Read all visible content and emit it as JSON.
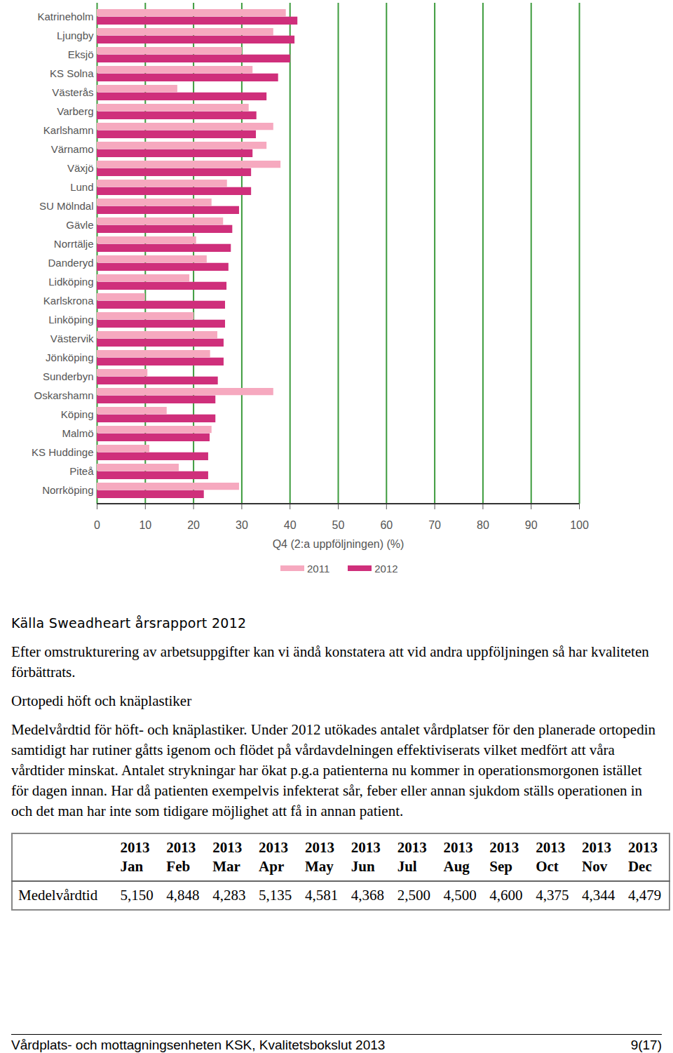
{
  "chart_data": {
    "type": "bar",
    "orientation": "horizontal",
    "grid": true,
    "categories": [
      "Katrineholm",
      "Ljungby",
      "Eksjö",
      "KS Solna",
      "Västerås",
      "Varberg",
      "Karlshamn",
      "Värnamo",
      "Växjö",
      "Lund",
      "SU Mölndal",
      "Gävle",
      "Norrtälje",
      "Danderyd",
      "Lidköping",
      "Karlskrona",
      "Linköping",
      "Västervik",
      "Jönköping",
      "Sunderbyn",
      "Oskarshamn",
      "Köping",
      "Malmö",
      "KS Huddinge",
      "Piteå",
      "Norrköping"
    ],
    "series": [
      {
        "name": "2011",
        "color": "#f6a9bf",
        "values": [
          39.2,
          36.6,
          30.1,
          32.3,
          16.7,
          31.5,
          36.6,
          35.2,
          38.1,
          27.0,
          23.8,
          26.2,
          20.6,
          22.8,
          19.2,
          10.0,
          20.1,
          25.0,
          23.5,
          10.5,
          36.6,
          14.5,
          23.8,
          10.9,
          17.0,
          29.5
        ]
      },
      {
        "name": "2012",
        "color": "#cf2f7b",
        "values": [
          41.6,
          41.0,
          40.1,
          37.6,
          35.2,
          33.1,
          33.0,
          32.3,
          32.0,
          32.0,
          29.5,
          28.1,
          27.8,
          27.3,
          26.9,
          26.6,
          26.6,
          26.3,
          26.3,
          25.1,
          24.6,
          24.6,
          23.4,
          23.1,
          23.1,
          22.2
        ]
      }
    ],
    "xlim": [
      0,
      100
    ],
    "xticks": [
      0,
      10,
      20,
      30,
      40,
      50,
      60,
      70,
      80,
      90,
      100
    ],
    "x_label": "Q4 (2:a uppföljningen) (%)",
    "legend": "bottom"
  },
  "source": "Källa Sweadheart årsrapport 2012",
  "paragraphs": [
    "Efter omstrukturering av arbetsuppgifter kan vi ändå konstatera att vid andra uppföljningen så har kvaliteten förbättrats.",
    "Ortopedi höft och knäplastiker",
    "Medelvårdtid för höft- och knäplastiker. Under 2012 utökades antalet vårdplatser för den planerade ortopedin samtidigt har rutiner gåtts igenom och flödet på vårdavdelningen effektiviserats vilket medfört att våra vårdtider minskat. Antalet strykningar har ökat p.g.a patienterna nu kommer in operationsmorgonen istället för dagen innan. Har då patienten exempelvis infekterat sår, feber eller annan sjukdom ställs operationen in och det man har inte som tidigare möjlighet att få in annan patient."
  ],
  "table": {
    "header": [
      "",
      "2013 Jan",
      "2013 Feb",
      "2013 Mar",
      "2013 Apr",
      "2013 May",
      "2013 Jun",
      "2013 Jul",
      "2013 Aug",
      "2013 Sep",
      "2013 Oct",
      "2013 Nov",
      "2013 Dec"
    ],
    "rows": [
      [
        "Medelvårdtid",
        "5,150",
        "4,848",
        "4,283",
        "5,135",
        "4,581",
        "4,368",
        "2,500",
        "4,500",
        "4,600",
        "4,375",
        "4,344",
        "4,479"
      ]
    ]
  },
  "footer": {
    "left": "Vårdplats- och mottagningsenheten KSK, Kvalitetsbokslut 2013",
    "right": "9(17)"
  }
}
